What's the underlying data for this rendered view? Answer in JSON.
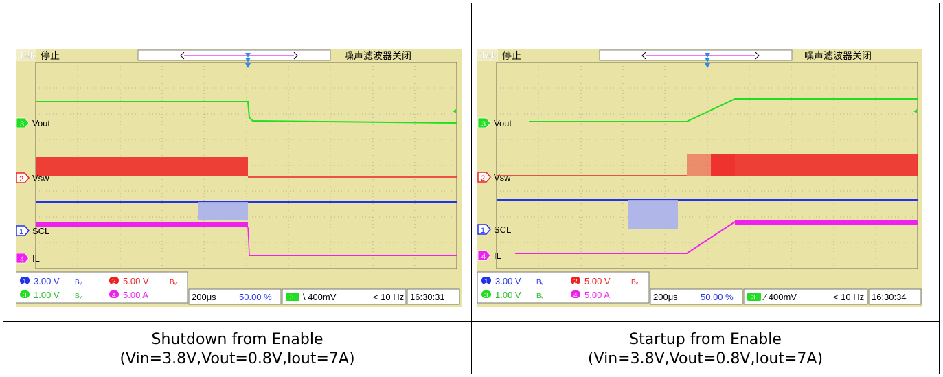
{
  "panels": [
    {
      "id": "left",
      "tek": "Tek",
      "status": "停止",
      "noise_filter": "噪声滤波器关闭",
      "channels": [
        {
          "num": "3",
          "name": "Vout",
          "color": "#22dd22"
        },
        {
          "num": "2",
          "name": "Vsw",
          "color": "#ee2222"
        },
        {
          "num": "1",
          "name": "SCL",
          "color": "#2233ee"
        },
        {
          "num": "4",
          "name": "IL",
          "color": "#ee22ee"
        }
      ],
      "readout": {
        "ch1_scale": "3.00 V",
        "ch1_bw": "Bᵥ",
        "ch2_scale": "5.00 V",
        "ch2_bw": "Bᵥ",
        "ch3_scale": "1.00 V",
        "ch3_bw": "Bᵥ",
        "ch4_scale": "5.00 A",
        "timebase": "200μs",
        "trigger_position": "50.00 %",
        "trigger_channel": "3",
        "trigger_level": "\\ 400mV",
        "trigger_freq": "< 10 Hz",
        "time": "16:30:31"
      },
      "caption_line1": "Shutdown from Enable",
      "caption_line2": "(Vin=3.8V,Vout=0.8V,Iout=7A)"
    },
    {
      "id": "right",
      "tek": "Tek",
      "status": "停止",
      "noise_filter": "噪声滤波器关闭",
      "channels": [
        {
          "num": "3",
          "name": "Vout",
          "color": "#22dd22"
        },
        {
          "num": "2",
          "name": "Vsw",
          "color": "#ee2222"
        },
        {
          "num": "1",
          "name": "SCL",
          "color": "#2233ee"
        },
        {
          "num": "4",
          "name": "IL",
          "color": "#ee22ee"
        }
      ],
      "readout": {
        "ch1_scale": "3.00 V",
        "ch1_bw": "Bᵥ",
        "ch2_scale": "5.00 V",
        "ch2_bw": "Bᵥ",
        "ch3_scale": "1.00 V",
        "ch3_bw": "Bᵥ",
        "ch4_scale": "5.00 A",
        "timebase": "200μs",
        "trigger_position": "50.00 %",
        "trigger_channel": "3",
        "trigger_level": "∕ 400mV",
        "trigger_freq": "< 10 Hz",
        "time": "16:30:34"
      },
      "caption_line1": "Startup from Enable",
      "caption_line2": "(Vin=3.8V,Vout=0.8V,Iout=7A)"
    }
  ],
  "colors": {
    "screen_bg": "#e9e4a6",
    "grid": "#a0a0a0",
    "ch1": "#2233ee",
    "ch2": "#ee2222",
    "ch3": "#22dd22",
    "ch4": "#ee22ee",
    "trigger_marker": "#2a8bea"
  }
}
